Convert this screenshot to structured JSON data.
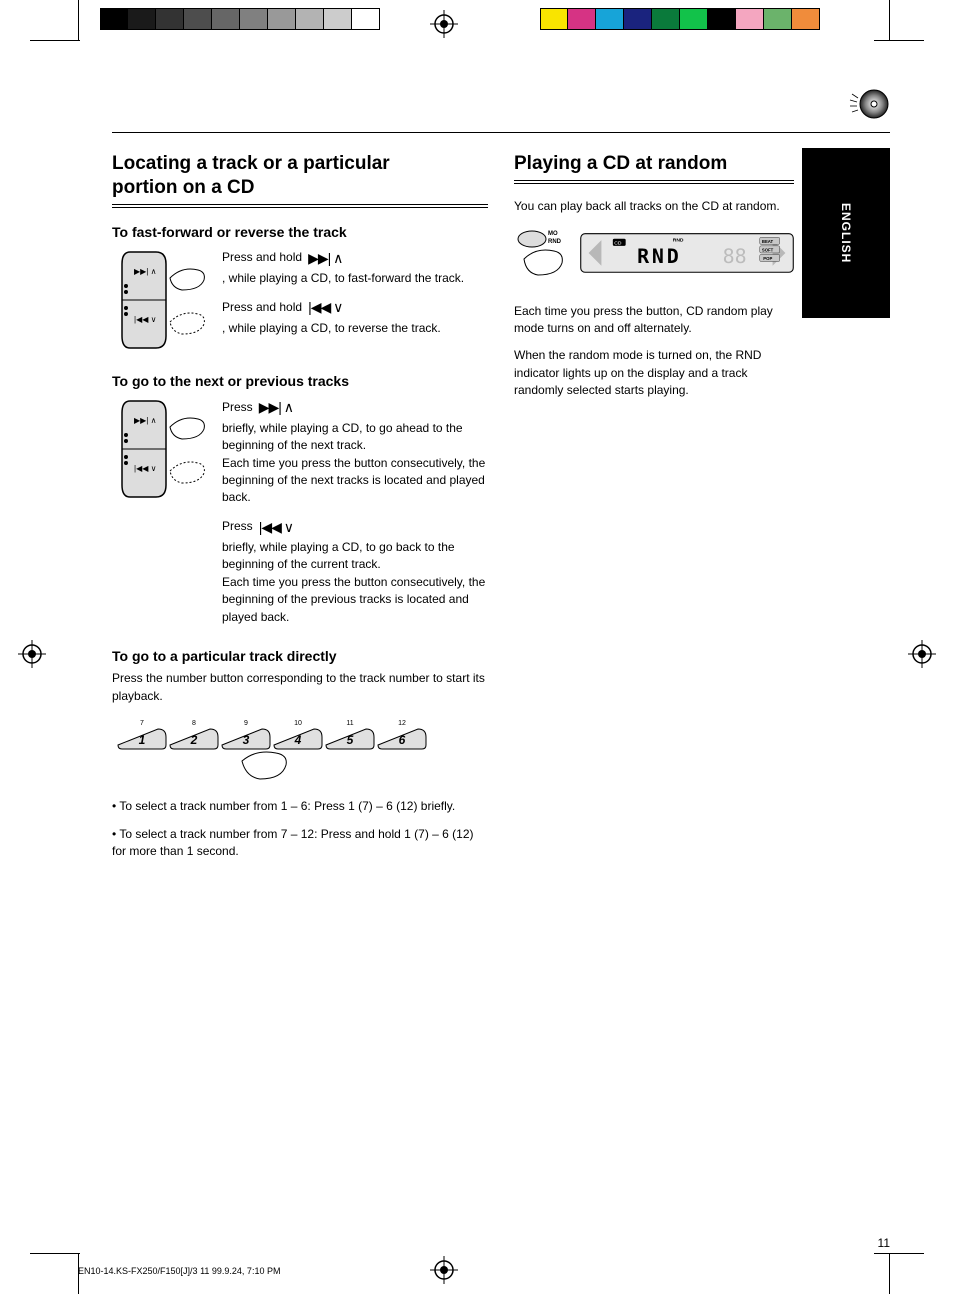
{
  "colorbar_left": [
    "#000000",
    "#1a1a1a",
    "#333333",
    "#4d4d4d",
    "#666666",
    "#808080",
    "#999999",
    "#b3b3b3",
    "#cccccc",
    "#ffffff"
  ],
  "colorbar_right": [
    "#f9e400",
    "#d63384",
    "#17a4d8",
    "#1a237e",
    "#0a7a3b",
    "#12c24a",
    "#000000",
    "#f4a6c0",
    "#6bb36b",
    "#f08c3b"
  ],
  "header": {
    "tab_label": "ENGLISH"
  },
  "left": {
    "title_line1": "Locating a track or a particular",
    "title_line2": "portion on a CD",
    "sub1": "To fast-forward or reverse the track",
    "sub1_press_hold": "Press and hold",
    "sub1_fwd_label": "     , while playing a CD, to fast-forward the track.",
    "sub1_rev_pre": "Press and hold",
    "sub1_rev_label": "     , while playing a CD, to reverse the track.",
    "sub2": "To go to the next or previous tracks",
    "sub2_next_pre": "Press",
    "sub2_next": "     briefly, while playing a CD, to go ahead to the beginning of the next track.",
    "sub2_next_more": "Each time you press the button consecutively, the beginning of the next tracks is located and played back.",
    "sub2_prev_pre": "Press",
    "sub2_prev": "     briefly, while playing a CD, to go back to the beginning of the current track.",
    "sub2_prev_more": "Each time you press the button consecutively, the beginning of the previous tracks is located and played back.",
    "sub3": "To go to a particular track directly",
    "sub3_body": "Press the number button corresponding to the track number to start its playback.",
    "sub3_low": "To select a track number from 1 – 6: Press 1 (7) – 6 (12) briefly.",
    "sub3_high": "To select a track number from 7 – 12: Press and hold 1 (7) – 6 (12) for more than 1 second.",
    "preset_top_labels": [
      "7",
      "8",
      "9",
      "10",
      "11",
      "12"
    ],
    "preset_buttons": [
      "1",
      "2",
      "3",
      "4",
      "5",
      "6"
    ]
  },
  "right": {
    "title": "Playing a CD at random",
    "para1": "You can play back all tracks on the CD at random.",
    "lcd_text": "RND",
    "lcd_indicator": "RND",
    "mo_rnd_label_line1": "MO",
    "mo_rnd_label_line2": "RND",
    "lcd_side_labels": [
      "BEAT",
      "SOFT",
      "POP"
    ],
    "after_lcd": "Each time you press the button, CD random play mode turns on and off alternately.",
    "para2": "When the random mode is turned on, the RND indicator lights up on the display and a track randomly selected starts playing."
  },
  "page_number": "11",
  "footer": "EN10-14.KS-FX250/F150[J]/3 11 99.9.24, 7:10 PM"
}
